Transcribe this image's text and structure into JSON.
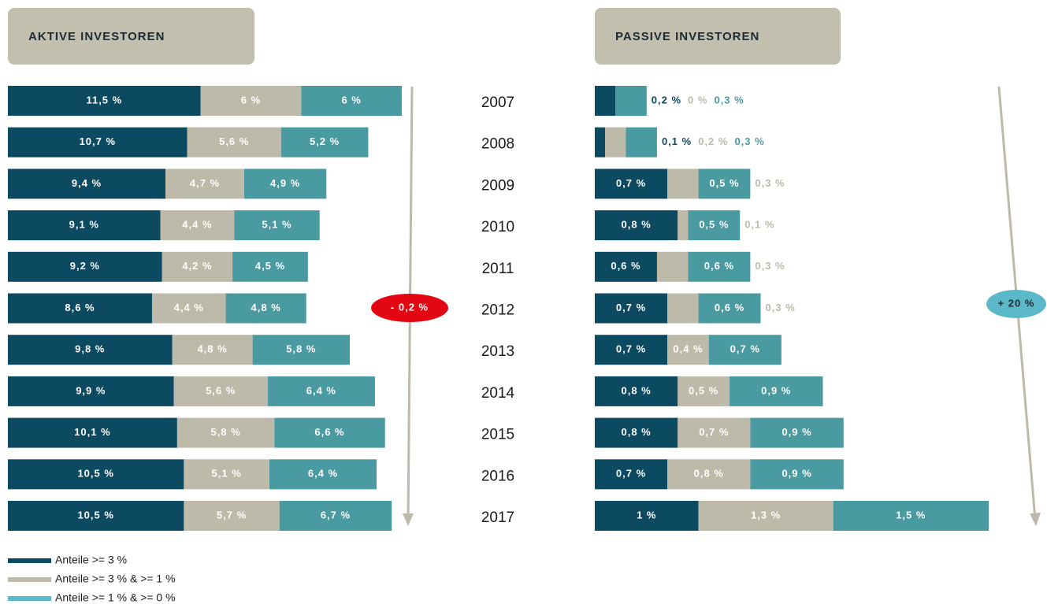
{
  "chart_data": [
    {
      "type": "bar",
      "orientation": "horizontal",
      "stacked": true,
      "title": "AKTIVE INVESTOREN",
      "annotation": "- 0,2 %",
      "annotation_color": "#e30613",
      "categories": [
        "2007",
        "2008",
        "2009",
        "2010",
        "2011",
        "2012",
        "2013",
        "2014",
        "2015",
        "2016",
        "2017"
      ],
      "series": [
        {
          "name": "Anteile >= 3 %",
          "color": "#0b4a60",
          "legend_color": "#0b4a60",
          "values": [
            11.5,
            10.7,
            9.4,
            9.1,
            9.2,
            8.6,
            9.8,
            9.9,
            10.1,
            10.5,
            10.5
          ],
          "value_labels": [
            "11,5 %",
            "10,7 %",
            "9,4 %",
            "9,1 %",
            "9,2 %",
            "8,6 %",
            "9,8 %",
            "9,9 %",
            "10,1 %",
            "10,5 %",
            "10,5 %"
          ]
        },
        {
          "name": "Anteile >= 3 % & >= 1 %",
          "color": "#bdbaa9",
          "legend_color": "#bdbaa9",
          "values": [
            6,
            5.6,
            4.7,
            4.4,
            4.2,
            4.4,
            4.8,
            5.6,
            5.8,
            5.1,
            5.7
          ],
          "value_labels": [
            "6 %",
            "5,6 %",
            "4,7 %",
            "4,4 %",
            "4,2 %",
            "4,4 %",
            "4,8 %",
            "5,6 %",
            "5,8 %",
            "5,1 %",
            "5,7 %"
          ]
        },
        {
          "name": "Anteile >= 1 % & >= 0 %",
          "color": "#4a9aa1",
          "legend_color": "#5bb8c9",
          "values": [
            6,
            5.2,
            4.9,
            5.1,
            4.5,
            4.8,
            5.8,
            6.4,
            6.6,
            6.4,
            6.7
          ],
          "value_labels": [
            "6 %",
            "5,2 %",
            "4,9 %",
            "5,1 %",
            "4,5 %",
            "4,8 %",
            "5,8 %",
            "6,4 %",
            "6,6 %",
            "6,4 %",
            "6,7 %"
          ]
        }
      ]
    },
    {
      "type": "bar",
      "orientation": "horizontal",
      "stacked": true,
      "title": "PASSIVE INVESTOREN",
      "annotation": "+ 20 %",
      "annotation_color": "#5bb8c9",
      "series": [
        {
          "color": "#0b4a60",
          "values": [
            0.2,
            0.1,
            0.7,
            0.8,
            0.6,
            0.7,
            0.7,
            0.8,
            0.8,
            0.7,
            1
          ],
          "value_labels": [
            "0,2 %",
            "0,1 %",
            "0,7 %",
            "0,8 %",
            "0,6 %",
            "0,7 %",
            "0,7 %",
            "0,8 %",
            "0,8 %",
            "0,7 %",
            "1 %"
          ]
        },
        {
          "color": "#bdbaa9",
          "values": [
            0,
            0.2,
            0.3,
            0.1,
            0.3,
            0.3,
            0.4,
            0.5,
            0.7,
            0.8,
            1.3
          ],
          "value_labels": [
            "0 %",
            "0,2 %",
            "0,3 %",
            "0,1 %",
            "0,3 %",
            "0,3 %",
            "0,4 %",
            "0,5 %",
            "0,7 %",
            "0,8 %",
            "1,3 %"
          ]
        },
        {
          "color": "#4a9aa1",
          "values": [
            0.3,
            0.3,
            0.5,
            0.5,
            0.6,
            0.6,
            0.7,
            0.9,
            0.9,
            0.9,
            1.5
          ],
          "value_labels": [
            "0,3 %",
            "0,3 %",
            "0,5 %",
            "0,5 %",
            "0,6 %",
            "0,6 %",
            "0,7 %",
            "0,9 %",
            "0,9 %",
            "0,9 %",
            "1,5 %"
          ]
        }
      ]
    }
  ]
}
